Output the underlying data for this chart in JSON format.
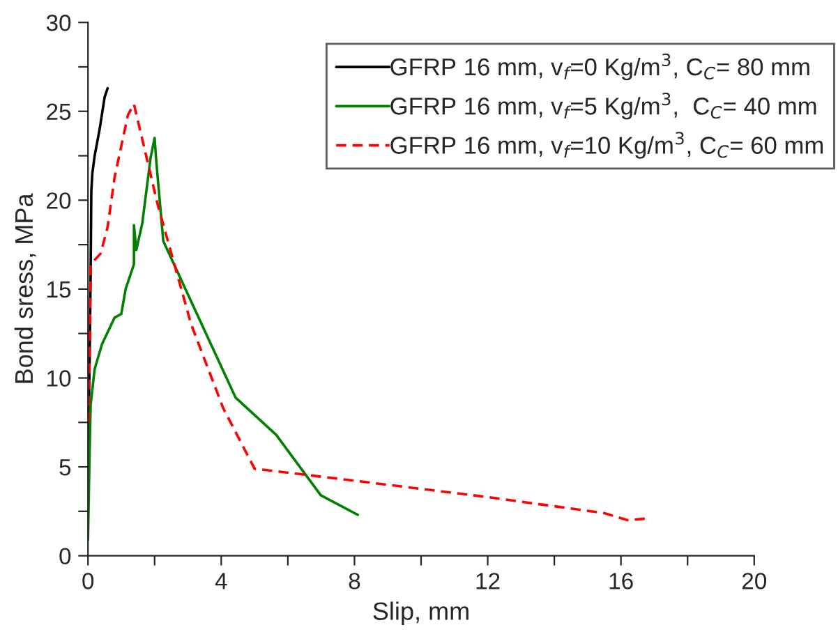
{
  "chart_data": {
    "type": "line",
    "xlabel": "Slip, mm",
    "ylabel": "Bond sress, MPa",
    "xlim": [
      0,
      20
    ],
    "ylim": [
      0,
      30
    ],
    "xticks": [
      0,
      {
        "value": 2,
        "label": null
      },
      4,
      {
        "value": 6,
        "label": null
      },
      8,
      {
        "value": 10,
        "label": null
      },
      12,
      {
        "value": 14,
        "label": null
      },
      16,
      {
        "value": 18,
        "label": null
      },
      20
    ],
    "yticks": [
      0,
      {
        "value": 2.5,
        "label": null
      },
      5,
      {
        "value": 7.5,
        "label": null
      },
      10,
      {
        "value": 12.5,
        "label": null
      },
      15,
      {
        "value": 17.5,
        "label": null
      },
      20,
      {
        "value": 22.5,
        "label": null
      },
      25,
      {
        "value": 27.5,
        "label": null
      },
      30
    ],
    "grid": false,
    "legend": "top right",
    "marker": "none",
    "series": [
      {
        "name": "GFRP 16 mm, v$_{f}$=0 Kg/m$^{3}$, C$_{C}$= 80 mm",
        "color": "#000000",
        "line_style": "solid",
        "x": [
          0.0,
          0.05,
          0.08,
          0.1,
          0.13,
          0.2,
          0.35,
          0.5,
          0.59
        ],
        "values": [
          5.2,
          11,
          16,
          20.5,
          21.5,
          22.5,
          24,
          25.8,
          26.3
        ]
      },
      {
        "name": "GFRP 16 mm, v$_{f}$=5 Kg/m$^{3}$,  C$_{C}$= 40 mm",
        "color": "#008000",
        "line_style": "solid",
        "x": [
          0.0,
          0.05,
          0.08,
          0.2,
          0.42,
          0.8,
          1.0,
          1.13,
          1.38,
          1.38,
          1.45,
          1.63,
          1.88,
          2.0,
          2.05,
          2.26,
          4.43,
          5.65,
          6.99,
          8.1
        ],
        "values": [
          0.9,
          6,
          8.5,
          10.5,
          11.9,
          13.4,
          13.6,
          15,
          16.4,
          18.6,
          17.2,
          18.7,
          22.4,
          23.5,
          22.2,
          17.7,
          8.9,
          6.8,
          3.4,
          2.3
        ]
      },
      {
        "name": "GFRP 16 mm, v$_{f}$=10 Kg/m$^{3}$, C$_{C}$= 60 mm",
        "color": "#ff0000",
        "line_style": "dashed",
        "x": [
          0.02,
          0.05,
          0.08,
          0.38,
          0.59,
          0.8,
          1.2,
          1.38,
          2.1,
          3.1,
          4.06,
          5.0,
          8.1,
          12.0,
          15.5,
          16.2,
          16.8
        ],
        "values": [
          7.5,
          12,
          16.4,
          17,
          18.5,
          21.3,
          24.8,
          25.4,
          19.7,
          13,
          8.3,
          4.9,
          4.2,
          3.3,
          2.4,
          2.0,
          2.1
        ]
      }
    ]
  }
}
